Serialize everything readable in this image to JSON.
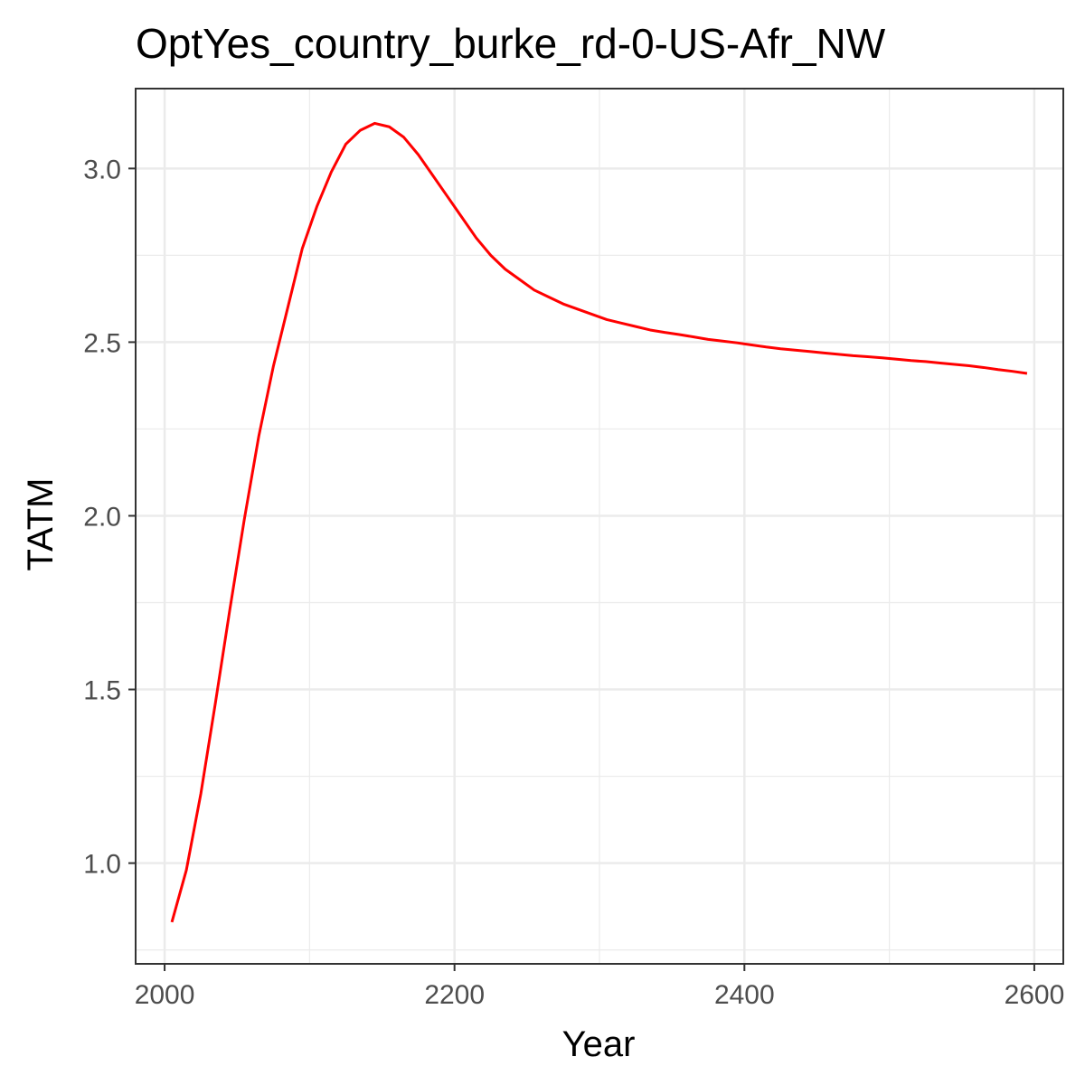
{
  "chart_data": {
    "type": "line",
    "title": "OptYes_country_burke_rd-0-US-Afr_NW",
    "xlabel": "Year",
    "ylabel": "TATM",
    "xlim": [
      1980,
      2620
    ],
    "ylim": [
      0.71,
      3.23
    ],
    "x_ticks": [
      2000,
      2200,
      2400,
      2600
    ],
    "x_tick_labels": [
      "2000",
      "2200",
      "2400",
      "2600"
    ],
    "y_ticks": [
      1.0,
      1.5,
      2.0,
      2.5,
      3.0
    ],
    "y_tick_labels": [
      "1.0",
      "1.5",
      "2.0",
      "2.5",
      "3.0"
    ],
    "grid": true,
    "colors": {
      "line": "#ff0000",
      "grid": "#ebebeb",
      "panel_border": "#333333",
      "tick_text": "#4d4d4d"
    },
    "series": [
      {
        "x": [
          2005,
          2015,
          2025,
          2035,
          2045,
          2055,
          2065,
          2075,
          2085,
          2095,
          2105,
          2115,
          2125,
          2135,
          2145,
          2155,
          2165,
          2175,
          2185,
          2195,
          2205,
          2215,
          2225,
          2235,
          2245,
          2255,
          2265,
          2275,
          2285,
          2295,
          2305,
          2315,
          2325,
          2335,
          2345,
          2355,
          2365,
          2375,
          2385,
          2395,
          2405,
          2415,
          2425,
          2435,
          2445,
          2455,
          2465,
          2475,
          2485,
          2495,
          2505,
          2515,
          2525,
          2535,
          2545,
          2555,
          2565,
          2575,
          2585,
          2595
        ],
        "values": [
          0.83,
          0.98,
          1.2,
          1.46,
          1.73,
          1.99,
          2.23,
          2.43,
          2.6,
          2.77,
          2.89,
          2.99,
          3.07,
          3.11,
          3.13,
          3.12,
          3.09,
          3.04,
          2.98,
          2.92,
          2.86,
          2.8,
          2.75,
          2.71,
          2.68,
          2.65,
          2.63,
          2.61,
          2.595,
          2.58,
          2.565,
          2.555,
          2.545,
          2.535,
          2.528,
          2.522,
          2.515,
          2.508,
          2.503,
          2.498,
          2.492,
          2.486,
          2.481,
          2.477,
          2.473,
          2.469,
          2.465,
          2.461,
          2.458,
          2.455,
          2.451,
          2.447,
          2.444,
          2.44,
          2.436,
          2.432,
          2.427,
          2.421,
          2.416,
          2.41
        ]
      }
    ]
  }
}
